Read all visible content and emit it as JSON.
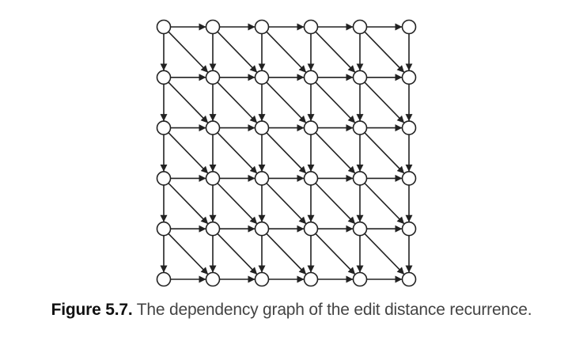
{
  "figure": {
    "caption_label": "Figure 5.7.",
    "caption_text": "The dependency graph of the edit distance recurrence."
  },
  "graph": {
    "rows": 6,
    "cols": 6,
    "edges": [
      "right",
      "down",
      "down-right"
    ],
    "node_fill": "#ffffff",
    "stroke_color": "#222222"
  }
}
